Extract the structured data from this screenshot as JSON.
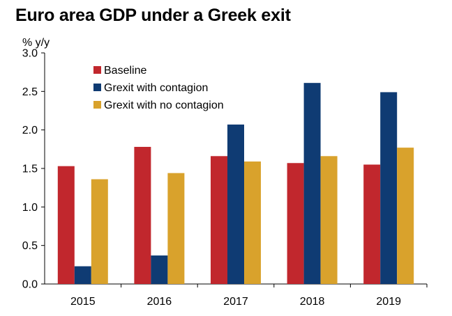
{
  "chart_data": {
    "type": "bar",
    "title": "Euro area GDP under a Greek exit",
    "ylabel": "% y/y",
    "xlabel": "",
    "ylim": [
      0,
      3.0
    ],
    "yticks": [
      "0.0",
      "0.5",
      "1.0",
      "1.5",
      "2.0",
      "2.5",
      "3.0"
    ],
    "grid": false,
    "legend_position": "top-left",
    "categories": [
      "2015",
      "2016",
      "2017",
      "2018",
      "2019"
    ],
    "series": [
      {
        "name": "Baseline",
        "color": "#c1272d",
        "values": [
          1.53,
          1.78,
          1.66,
          1.57,
          1.55
        ]
      },
      {
        "name": "Grexit with contagion",
        "color": "#0f3b73",
        "values": [
          0.23,
          0.37,
          2.07,
          2.61,
          2.49
        ]
      },
      {
        "name": "Grexit with no contagion",
        "color": "#d9a22c",
        "values": [
          1.36,
          1.44,
          1.59,
          1.66,
          1.77
        ]
      }
    ]
  }
}
